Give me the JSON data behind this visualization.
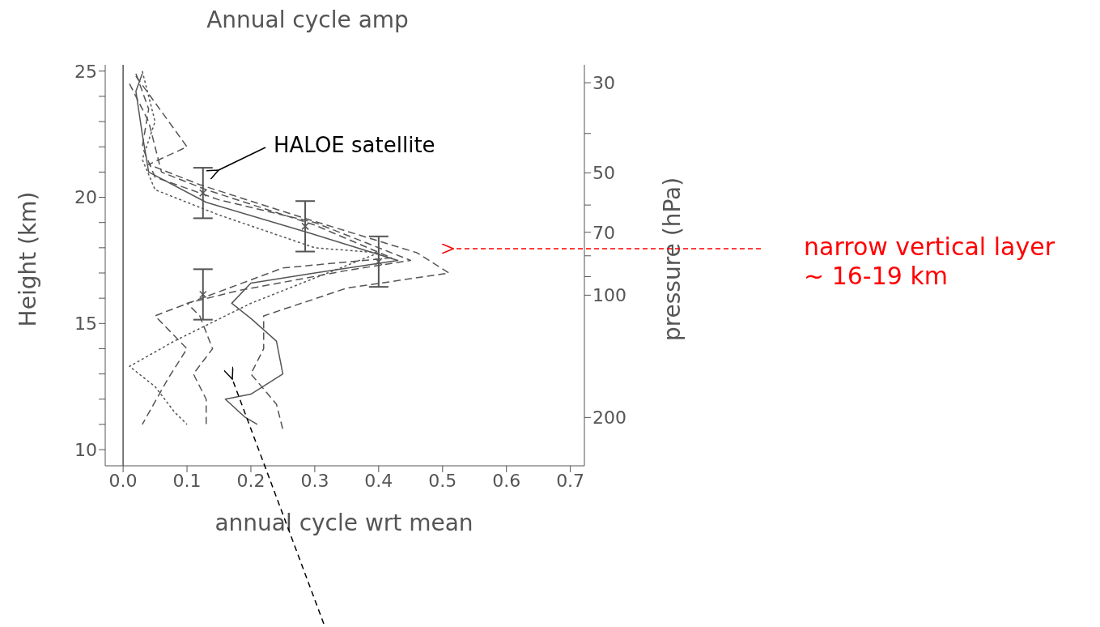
{
  "chart_data": {
    "type": "line",
    "title": "Annual cycle amp",
    "xlabel": "annual cycle wrt mean",
    "ylabel": "Height (km)",
    "y2label": "pressure (hPa)",
    "xlim": [
      -0.028,
      0.722
    ],
    "xticks": [
      {
        "value": 0,
        "label": "0.0"
      },
      0.1,
      0.2,
      0.3,
      0.4,
      0.5,
      0.6,
      0.7
    ],
    "ylim": [
      9.36,
      25.25
    ],
    "yticks": [
      10,
      {
        "value": 11,
        "label": null
      },
      {
        "value": 12,
        "label": null
      },
      {
        "value": 13,
        "label": null
      },
      {
        "value": 14,
        "label": null
      },
      15,
      {
        "value": 16,
        "label": null
      },
      {
        "value": 17,
        "label": null
      },
      {
        "value": 18,
        "label": null
      },
      {
        "value": 19,
        "label": null
      },
      20,
      {
        "value": 21,
        "label": null
      },
      {
        "value": 22,
        "label": null
      },
      {
        "value": 23,
        "label": null
      },
      {
        "value": 24,
        "label": null
      },
      25
    ],
    "y2lim": [
      263,
      27.1
    ],
    "y2ticks": [
      30,
      {
        "value": 40,
        "label": null
      },
      50,
      {
        "value": 60,
        "label": null
      },
      70,
      {
        "value": 80,
        "label": null
      },
      {
        "value": 90,
        "label": null
      },
      100,
      200
    ],
    "log": "y2",
    "grid": false,
    "legend": false,
    "series": [
      {
        "color": "#555555",
        "line_style": "solid",
        "x": [
          0.03,
          0.02,
          0.03,
          0.04,
          0.13,
          0.29,
          0.43,
          0.3,
          0.2,
          0.17,
          0.2,
          0.24,
          0.25,
          0.2,
          0.16,
          0.19,
          0.21
        ],
        "values": [
          24.9,
          24.2,
          22.5,
          21.0,
          19.8,
          18.6,
          17.5,
          17.0,
          16.6,
          15.8,
          15.2,
          14.3,
          13.0,
          12.2,
          12.0,
          11.3,
          11.0
        ]
      },
      {
        "color": "#555555",
        "line_style": "dashed",
        "x": [
          0.02,
          0.04,
          0.03,
          0.05,
          0.15,
          0.3,
          0.45,
          0.35,
          0.18,
          0.1,
          0.12,
          0.14,
          0.11,
          0.13,
          0.13
        ],
        "values": [
          24.9,
          23.5,
          22.0,
          20.8,
          19.9,
          19.0,
          17.5,
          17.1,
          16.3,
          15.8,
          15.3,
          14.0,
          13.0,
          12.0,
          11.0
        ]
      },
      {
        "color": "#555555",
        "line_style": "dotted",
        "x": [
          0.03,
          0.05,
          0.03,
          0.05,
          0.15,
          0.3,
          0.4,
          0.2,
          0.08,
          0.01,
          0.05,
          0.08,
          0.1
        ],
        "values": [
          25.0,
          23.0,
          21.5,
          20.3,
          19.3,
          18.0,
          17.8,
          15.8,
          14.3,
          13.3,
          12.5,
          11.5,
          11.0
        ]
      },
      {
        "color": "#555555",
        "line_style": "dashed",
        "x": [
          0.02,
          0.1,
          0.04,
          0.12,
          0.28,
          0.46,
          0.51,
          0.35,
          0.22,
          0.22,
          0.2,
          0.24,
          0.25
        ],
        "values": [
          24.8,
          22.0,
          21.3,
          20.5,
          19.2,
          17.8,
          17.0,
          16.4,
          15.3,
          14.0,
          13.0,
          11.8,
          10.8
        ]
      },
      {
        "color": "#555555",
        "line_style": "dashed",
        "x": [
          0.01,
          0.04,
          0.06,
          0.13,
          0.3,
          0.42,
          0.25,
          0.07,
          0.05,
          0.1,
          0.07,
          0.03
        ],
        "values": [
          24.5,
          23.0,
          21.0,
          20.3,
          18.9,
          17.6,
          17.2,
          15.5,
          15.3,
          14.0,
          12.8,
          11.0
        ]
      },
      {
        "type": "scatter",
        "marker": "cross",
        "color": "#555555",
        "x": [
          0.125,
          0.285,
          0.4,
          0.125
        ],
        "values": [
          20.17,
          18.85,
          17.45,
          16.15
        ],
        "errors": [
          1.0,
          1.0,
          1.0,
          1.0
        ]
      }
    ],
    "ref_lines": [
      {
        "axis": "x",
        "value": 0,
        "color": "#555555"
      }
    ],
    "annotations": [
      "HALOE satellite",
      "narrow vertical layer\n~ 16-19 km"
    ]
  }
}
